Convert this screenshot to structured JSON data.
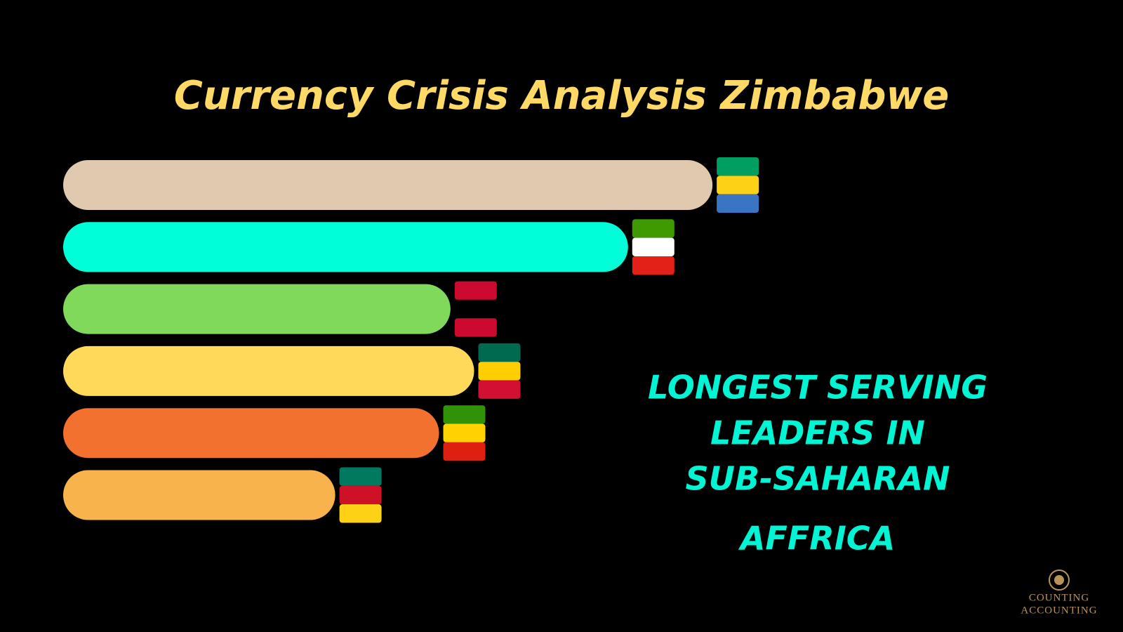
{
  "chart_data": {
    "type": "bar",
    "title": "Currency Crisis Analysis Zimbabwe",
    "subtitle": [
      "LONGEST SERVING",
      "LEADERS IN",
      "SUB-SAHARAN",
      "AFFRICA"
    ],
    "values": [
      907,
      789,
      541,
      574,
      525,
      380
    ],
    "colors": [
      "#e0c9ae",
      "#00ffd9",
      "#80d95a",
      "#ffd95a",
      "#f2712e",
      "#f8b34d"
    ],
    "watermark": [
      "COUNTING",
      "ACCOUNTING"
    ]
  }
}
